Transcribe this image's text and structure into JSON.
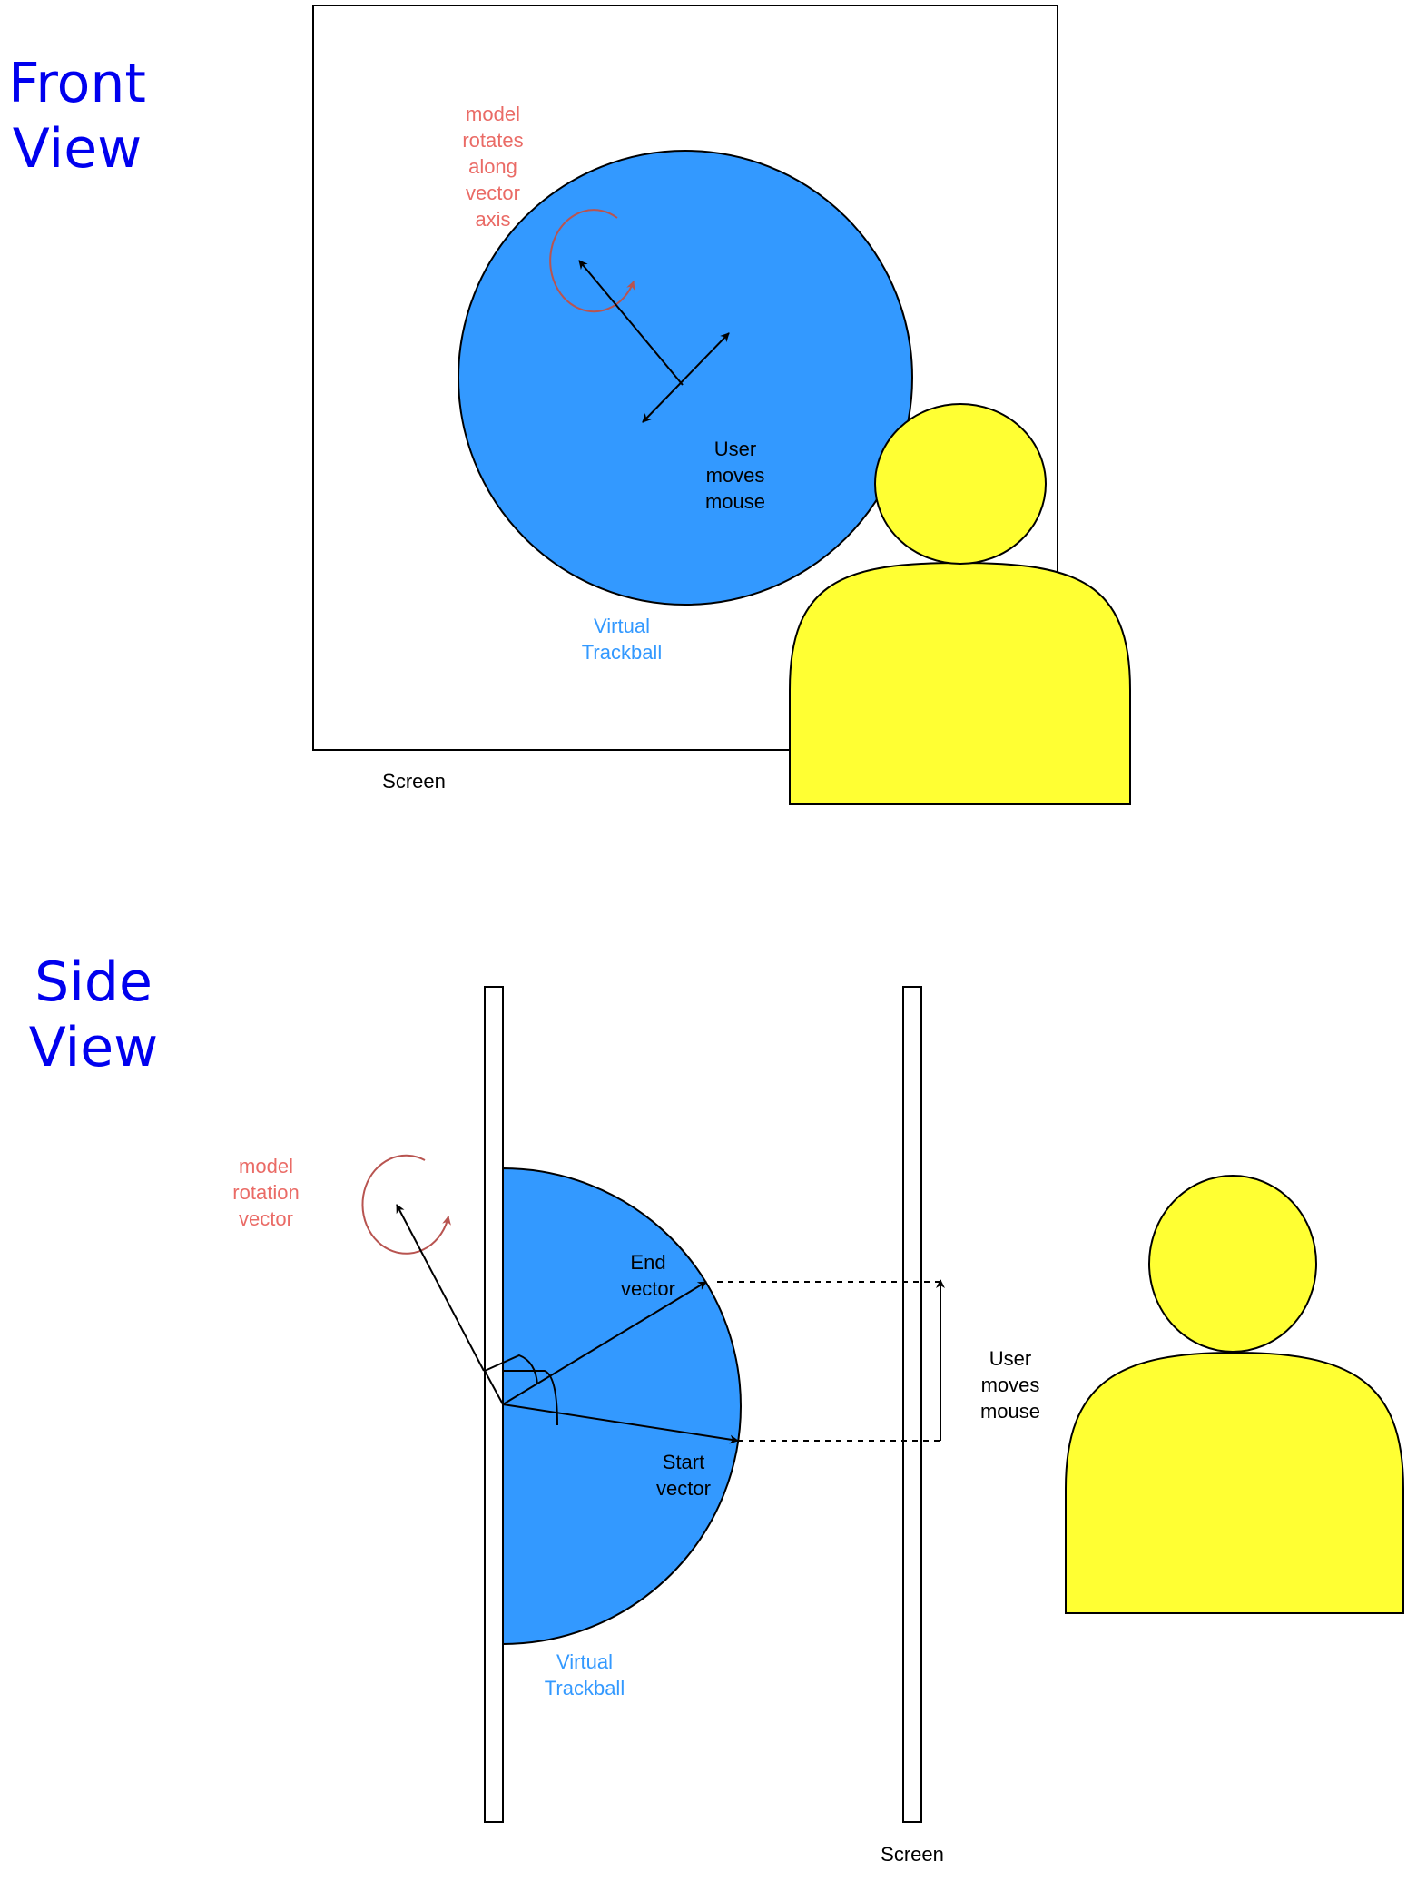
{
  "colors": {
    "title": "#0000ee",
    "annotation": "#ea6b66",
    "rotation_arc": "#b85450",
    "trackball_fill": "#3399ff",
    "trackball_label": "#3399ff",
    "person_fill": "#ffff33",
    "outline": "#000000"
  },
  "front_view": {
    "title_lines": [
      "Front",
      "View"
    ],
    "rotation_label_lines": [
      "model",
      "rotates",
      "along",
      "vector",
      "axis"
    ],
    "user_label_lines": [
      "User",
      "moves",
      "mouse"
    ],
    "trackball_label_lines": [
      "Virtual",
      "Trackball"
    ],
    "screen_label": "Screen"
  },
  "side_view": {
    "title_lines": [
      "Side",
      "View"
    ],
    "rotation_label_lines": [
      "model",
      "rotation",
      "vector"
    ],
    "end_vector_label_lines": [
      "End",
      "vector"
    ],
    "start_vector_label_lines": [
      "Start",
      "vector"
    ],
    "user_label_lines": [
      "User",
      "moves",
      "mouse"
    ],
    "trackball_label_lines": [
      "Virtual",
      "Trackball"
    ],
    "screen_label": "Screen"
  }
}
